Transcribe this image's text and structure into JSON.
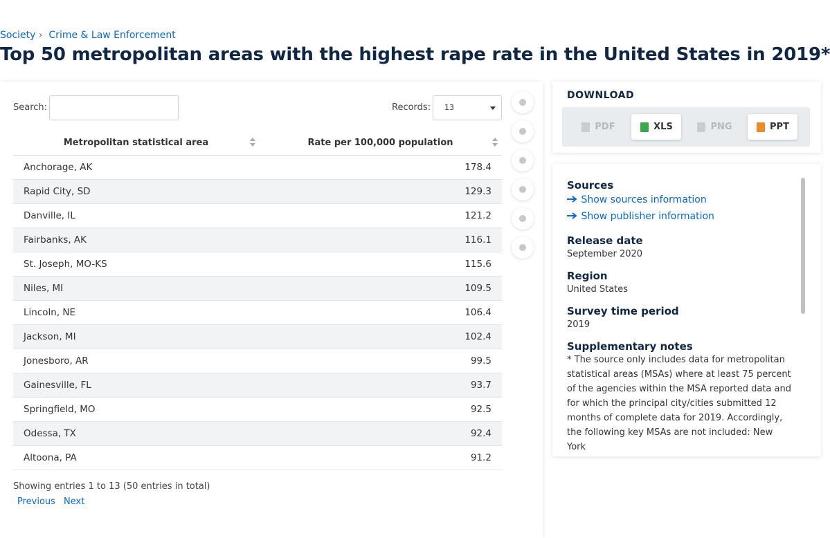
{
  "breadcrumb": [
    "Society",
    "Crime & Law Enforcement"
  ],
  "title": "Top 50 metropolitan areas with the highest rape rate in the United States in 2019*",
  "search_label": "Search:",
  "records_label": "Records:",
  "records_value": "13",
  "table": {
    "headers": [
      "Metropolitan statistical area",
      "Rate per 100,000 population"
    ],
    "rows": [
      [
        "Anchorage, AK",
        178.4
      ],
      [
        "Rapid City, SD",
        129.3
      ],
      [
        "Danville, IL",
        121.2
      ],
      [
        "Fairbanks, AK",
        116.1
      ],
      [
        "St. Joseph, MO-KS",
        115.6
      ],
      [
        "Niles, MI",
        109.5
      ],
      [
        "Lincoln, NE",
        106.4
      ],
      [
        "Jackson, MI",
        102.4
      ],
      [
        "Jonesboro, AR",
        99.5
      ],
      [
        "Gainesville, FL",
        93.7
      ],
      [
        "Springfield, MO",
        92.5
      ],
      [
        "Odessa, TX",
        92.4
      ],
      [
        "Altoona, PA",
        91.2
      ]
    ]
  },
  "footer": "Showing entries 1 to 13 (50 entries in total)",
  "pagination": [
    "Previous",
    "Next"
  ],
  "download": {
    "title": "DOWNLOAD",
    "buttons": [
      "PDF",
      "XLS",
      "PNG",
      "PPT"
    ]
  },
  "info": {
    "sources_title": "Sources",
    "links": [
      "Show sources information",
      "Show publisher information"
    ],
    "sections": [
      {
        "title": "Release date",
        "text": "September 2020"
      },
      {
        "title": "Region",
        "text": "United States"
      },
      {
        "title": "Survey time period",
        "text": "2019"
      },
      {
        "title": "Supplementary notes",
        "text": "* The source only includes data for metropolitan statistical areas (MSAs) where at least 75 percent of the agencies within the MSA reported data and for which the principal city/cities submitted 12 months of complete data for 2019. Accordingly, the following key MSAs are not included: New York"
      }
    ]
  }
}
